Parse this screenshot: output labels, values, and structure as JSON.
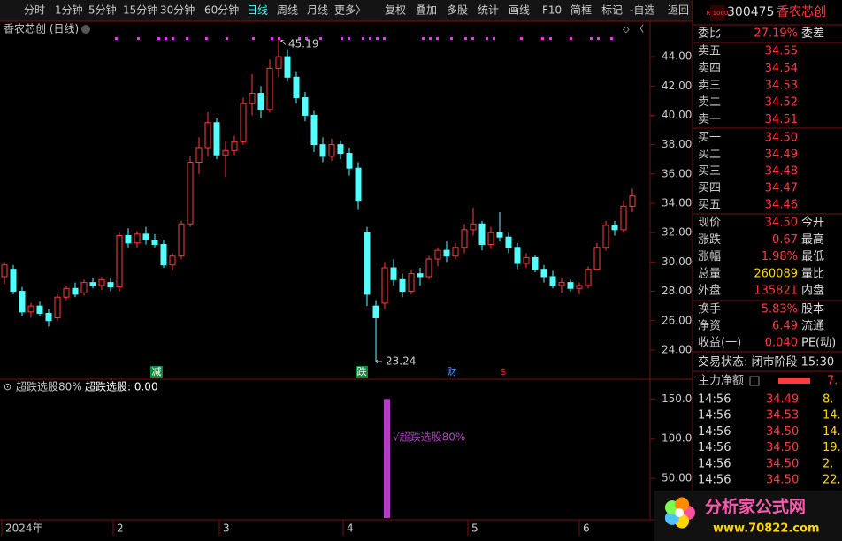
{
  "toolbar": {
    "left_items": [
      "分时",
      "1分钟",
      "5分钟",
      "15分钟",
      "30分钟",
      "60分钟",
      "日线",
      "周线",
      "月线",
      "更多〉"
    ],
    "right_items": [
      "复权",
      "叠加",
      "多股",
      "统计",
      "画线",
      "F10",
      "简框",
      "标记",
      "-自选",
      "返回"
    ]
  },
  "main_chart": {
    "title": "香农芯创 (日线)",
    "candles": [
      [
        29.0,
        30.0,
        28.5,
        29.8
      ],
      [
        29.5,
        29.8,
        27.8,
        28.0
      ],
      [
        28.0,
        28.3,
        26.3,
        26.6
      ],
      [
        26.6,
        27.2,
        26.2,
        27.0
      ],
      [
        27.0,
        27.3,
        26.3,
        26.5
      ],
      [
        26.5,
        26.8,
        25.6,
        26.0
      ],
      [
        26.2,
        27.8,
        26.0,
        27.6
      ],
      [
        27.6,
        28.4,
        27.4,
        28.2
      ],
      [
        28.2,
        28.6,
        27.6,
        27.8
      ],
      [
        27.9,
        28.8,
        27.7,
        28.6
      ],
      [
        28.6,
        28.9,
        28.2,
        28.4
      ],
      [
        28.4,
        29.0,
        28.1,
        28.8
      ],
      [
        28.6,
        28.9,
        28.0,
        28.3
      ],
      [
        28.3,
        32.0,
        28.0,
        31.8
      ],
      [
        31.8,
        32.3,
        31.0,
        31.3
      ],
      [
        31.3,
        32.1,
        31.0,
        31.9
      ],
      [
        31.9,
        32.4,
        31.2,
        31.5
      ],
      [
        31.5,
        31.9,
        31.0,
        31.2
      ],
      [
        31.2,
        31.5,
        29.6,
        29.8
      ],
      [
        29.8,
        30.6,
        29.4,
        30.4
      ],
      [
        30.4,
        32.8,
        30.2,
        32.6
      ],
      [
        32.6,
        37.2,
        32.4,
        36.8
      ],
      [
        36.8,
        38.5,
        36.0,
        37.8
      ],
      [
        37.8,
        40.2,
        37.2,
        39.5
      ],
      [
        39.5,
        39.8,
        37.0,
        37.3
      ],
      [
        37.3,
        38.2,
        35.8,
        37.6
      ],
      [
        37.6,
        38.6,
        37.3,
        38.2
      ],
      [
        38.2,
        41.2,
        38.0,
        40.8
      ],
      [
        40.8,
        42.8,
        40.0,
        41.5
      ],
      [
        41.5,
        42.0,
        39.8,
        40.4
      ],
      [
        40.4,
        43.8,
        40.2,
        43.2
      ],
      [
        43.2,
        45.19,
        42.6,
        44.0
      ],
      [
        44.0,
        44.5,
        42.3,
        42.6
      ],
      [
        42.6,
        43.0,
        40.8,
        41.2
      ],
      [
        41.2,
        41.6,
        39.6,
        40.0
      ],
      [
        40.0,
        40.3,
        37.5,
        38.0
      ],
      [
        38.0,
        38.5,
        36.8,
        37.2
      ],
      [
        37.2,
        38.4,
        36.9,
        38.0
      ],
      [
        38.0,
        38.3,
        37.0,
        37.4
      ],
      [
        37.4,
        37.8,
        35.9,
        36.4
      ],
      [
        36.4,
        36.8,
        33.6,
        34.2
      ],
      [
        32.0,
        32.4,
        27.0,
        27.8
      ],
      [
        27.0,
        27.4,
        23.24,
        26.2
      ],
      [
        27.2,
        30.0,
        26.8,
        29.6
      ],
      [
        29.6,
        30.2,
        28.4,
        28.8
      ],
      [
        28.8,
        29.2,
        27.6,
        28.0
      ],
      [
        28.0,
        29.5,
        27.8,
        29.2
      ],
      [
        29.2,
        29.6,
        28.4,
        29.0
      ],
      [
        29.0,
        30.4,
        28.8,
        30.2
      ],
      [
        30.2,
        31.0,
        29.7,
        30.8
      ],
      [
        30.8,
        31.4,
        30.0,
        30.4
      ],
      [
        30.4,
        31.3,
        30.2,
        31.0
      ],
      [
        31.0,
        32.6,
        30.6,
        32.2
      ],
      [
        32.2,
        33.7,
        31.8,
        32.6
      ],
      [
        32.6,
        32.8,
        30.8,
        31.2
      ],
      [
        31.2,
        32.4,
        30.9,
        32.0
      ],
      [
        32.0,
        33.4,
        31.4,
        31.7
      ],
      [
        31.7,
        32.0,
        30.6,
        31.0
      ],
      [
        31.0,
        31.3,
        29.5,
        29.9
      ],
      [
        29.9,
        30.6,
        29.6,
        30.3
      ],
      [
        30.3,
        30.5,
        29.3,
        29.5
      ],
      [
        29.5,
        29.8,
        28.6,
        29.0
      ],
      [
        29.0,
        29.4,
        28.2,
        28.4
      ],
      [
        28.4,
        28.9,
        27.9,
        28.6
      ],
      [
        28.6,
        28.8,
        28.0,
        28.2
      ],
      [
        28.2,
        28.6,
        27.8,
        28.4
      ],
      [
        28.4,
        29.7,
        28.2,
        29.5
      ],
      [
        29.5,
        31.3,
        29.4,
        31.0
      ],
      [
        31.0,
        32.8,
        30.8,
        32.5
      ],
      [
        32.5,
        32.8,
        31.8,
        32.2
      ],
      [
        32.2,
        34.2,
        32.0,
        33.8
      ],
      [
        33.8,
        35.0,
        33.4,
        34.5
      ]
    ],
    "ylim": [
      22.25,
      45.45
    ],
    "yticks": [
      {
        "value": 24,
        "label": "24.00"
      },
      {
        "value": 26,
        "label": "26.00"
      },
      {
        "value": 28,
        "label": "28.00"
      },
      {
        "value": 30,
        "label": "30.00"
      },
      {
        "value": 32,
        "label": "32.00"
      },
      {
        "value": 34,
        "label": "34.00"
      },
      {
        "value": 36,
        "label": "36.00"
      },
      {
        "value": 38,
        "label": "38.00"
      },
      {
        "value": 40,
        "label": "40.00"
      },
      {
        "value": 42,
        "label": "42.00"
      },
      {
        "value": 44,
        "label": "44.00"
      }
    ],
    "high_label": "45.19",
    "low_label": "23.24",
    "events": [
      "减",
      "跌",
      "财",
      "$"
    ]
  },
  "indicator": {
    "title": "超跌选股80%",
    "value_text": "超跌选股: 0.00",
    "ylim": [
      0,
      167
    ],
    "yticks": [
      {
        "value": 50,
        "label": "50.00"
      },
      {
        "value": 100,
        "label": "100.0"
      },
      {
        "value": 150,
        "label": "150.0"
      }
    ],
    "bar_value": 150,
    "bar_label": "√超跌选股80%"
  },
  "x_axis": {
    "labels": [
      "2024年",
      "2",
      "3",
      "4",
      "5",
      "6"
    ]
  },
  "quote": {
    "badge": "R 1000",
    "code": "300475",
    "name": "香农芯创",
    "ratio_row": [
      "委比",
      "27.19%",
      "委差"
    ],
    "asks": [
      [
        "卖五",
        "34.55"
      ],
      [
        "卖四",
        "34.54"
      ],
      [
        "卖三",
        "34.53"
      ],
      [
        "卖二",
        "34.52"
      ],
      [
        "卖一",
        "34.51"
      ]
    ],
    "bids": [
      [
        "买一",
        "34.50"
      ],
      [
        "买二",
        "34.49"
      ],
      [
        "买三",
        "34.48"
      ],
      [
        "买四",
        "34.47"
      ],
      [
        "买五",
        "34.46"
      ]
    ],
    "stats": [
      [
        "现价",
        "34.50",
        "今开"
      ],
      [
        "涨跌",
        "0.67",
        "最高"
      ],
      [
        "涨幅",
        "1.98%",
        "最低"
      ],
      [
        "总量",
        "260089",
        "量比"
      ],
      [
        "外盘",
        "135821",
        "内盘"
      ]
    ],
    "stats2": [
      [
        "换手",
        "5.83%",
        "股本"
      ],
      [
        "净资",
        "6.49",
        "流通"
      ],
      [
        "收益(一)",
        "0.040",
        "PE(动)"
      ]
    ],
    "status": "交易状态: 闭市阶段 15:30",
    "flow": [
      "主力净额",
      "7."
    ],
    "trades": [
      [
        "14:56",
        "34.49",
        "8."
      ],
      [
        "14:56",
        "34.53",
        "14."
      ],
      [
        "14:56",
        "34.50",
        "14."
      ],
      [
        "14:56",
        "34.50",
        "19."
      ],
      [
        "14:56",
        "34.50",
        "2."
      ],
      [
        "14:56",
        "34.50",
        "22."
      ]
    ]
  },
  "watermark": {
    "title": "分析家公式网",
    "url": "www.70822.com"
  }
}
